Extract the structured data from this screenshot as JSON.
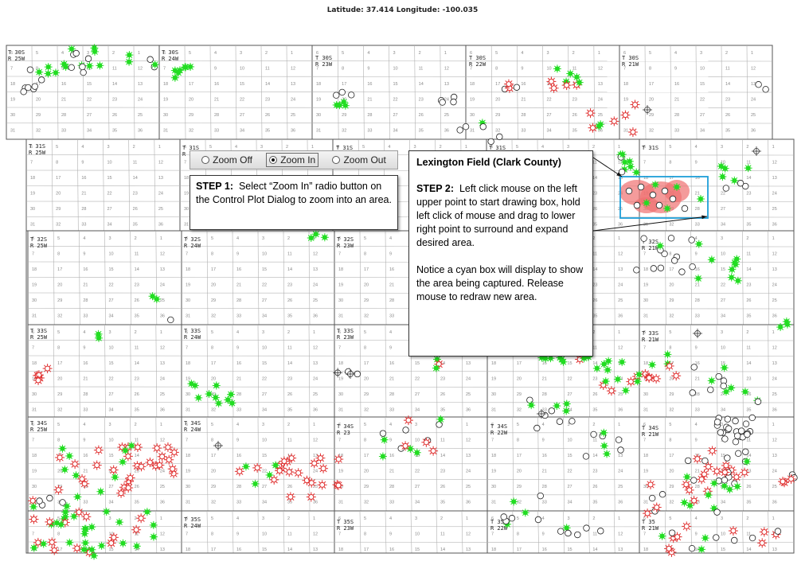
{
  "header": {
    "coordinate_readout": "Latitude: 37.414 Longitude: -100.035"
  },
  "dialog": {
    "options": [
      {
        "label": "Zoom Off",
        "selected": false
      },
      {
        "label": "Zoom In",
        "selected": true
      },
      {
        "label": "Zoom Out",
        "selected": false
      }
    ]
  },
  "step1": {
    "title": "STEP 1:",
    "text": "Select “Zoom In” radio button on the Control Plot Dialog to zoom into an area."
  },
  "step2": {
    "heading": "Lexington Field (Clark County)",
    "title": "STEP 2:",
    "text": "Left click mouse on the left upper point to start drawing box, hold left click of mouse and drag to lower right point to surround and expand desired area.",
    "notice": "Notice a cyan box will display to show the area being captured. Release mouse to redraw new area."
  },
  "map": {
    "colors": {
      "oil_well": "#22dd22",
      "dry_hole": "#ffffff",
      "gas_well": "#e03030",
      "selection_box": "#1e9fd8",
      "field_highlight": "#f07070",
      "grid": "#b0b0b0"
    },
    "township_labels": [
      {
        "t": "T 30S",
        "r": "R 25W"
      },
      {
        "t": "T 30S",
        "r": "R 24W"
      },
      {
        "t": "T 30S",
        "r": "R 23W"
      },
      {
        "t": "T 30S",
        "r": "R 22W"
      },
      {
        "t": "T 30S",
        "r": "R 21W"
      },
      {
        "t": "T 31S",
        "r": "R 25W"
      },
      {
        "t": "T 31S",
        "r": "R 24W"
      },
      {
        "t": "T 31S",
        "r": ""
      },
      {
        "t": "T 31S",
        "r": ""
      },
      {
        "t": "T 31S",
        "r": ""
      },
      {
        "t": "T 32S",
        "r": "R 25W"
      },
      {
        "t": "T 32S",
        "r": "R 24W"
      },
      {
        "t": "T 32S",
        "r": "R 23W"
      },
      {
        "t": "T 32S",
        "r": "R 21W"
      },
      {
        "t": "T 33S",
        "r": "R 25W"
      },
      {
        "t": "T 33S",
        "r": "R 24W"
      },
      {
        "t": "T 33S",
        "r": "R 23W"
      },
      {
        "t": "T 33S",
        "r": "R 21W"
      },
      {
        "t": "T 34S",
        "r": "R 25W"
      },
      {
        "t": "T 34S",
        "r": "R 24W"
      },
      {
        "t": "T 34S",
        "r": "R 23"
      },
      {
        "t": "T 34S",
        "r": "R 22W"
      },
      {
        "t": "T 34S",
        "r": "R 21W"
      },
      {
        "t": "T 35S",
        "r": "R 24W"
      },
      {
        "t": "T 35S",
        "r": "R 23W"
      },
      {
        "t": "T 35S",
        "r": "R 22W"
      },
      {
        "t": "T 35",
        "r": "R 21W"
      }
    ]
  }
}
